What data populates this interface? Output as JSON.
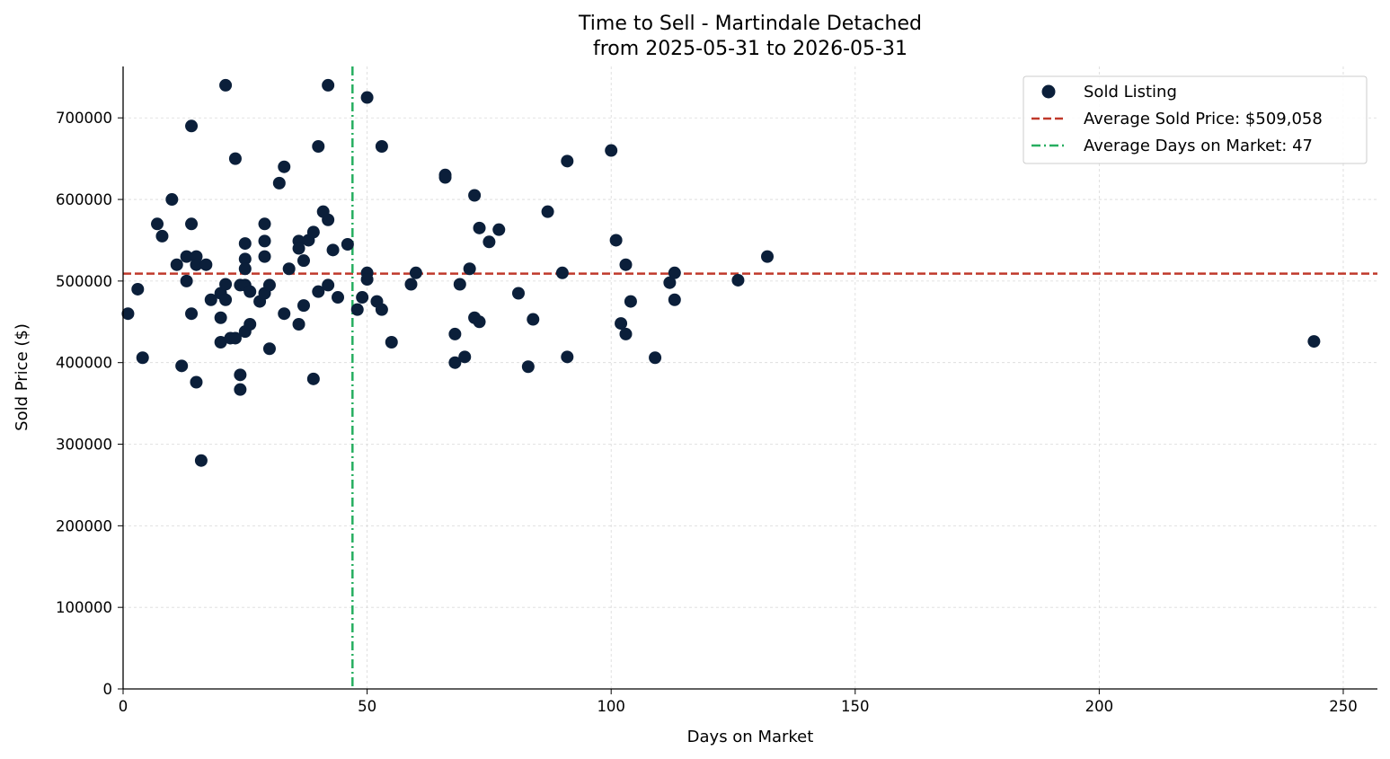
{
  "chart_data": {
    "type": "scatter",
    "title": "Time to Sell - Martindale Detached",
    "subtitle": "from 2025-05-31 to 2026-05-31",
    "xlabel": "Days on Market",
    "ylabel": "Sold Price ($)",
    "xlim": [
      0,
      257
    ],
    "ylim": [
      0,
      763000
    ],
    "xticks": [
      0,
      50,
      100,
      150,
      200,
      250
    ],
    "yticks": [
      0,
      100000,
      200000,
      300000,
      400000,
      500000,
      600000,
      700000
    ],
    "grid": true,
    "legend_position": "top-right",
    "colors": {
      "points": "#0b1f3a",
      "avg_price": "#c0392b",
      "avg_days": "#27ae60"
    },
    "series": [
      {
        "name": "Sold Listing",
        "x": [
          1,
          3,
          4,
          7,
          8,
          10,
          11,
          12,
          13,
          13,
          14,
          14,
          14,
          15,
          15,
          15,
          16,
          17,
          18,
          20,
          20,
          20,
          21,
          21,
          21,
          22,
          23,
          23,
          24,
          24,
          24,
          25,
          25,
          25,
          25,
          25,
          26,
          26,
          28,
          29,
          29,
          29,
          29,
          30,
          30,
          32,
          33,
          33,
          34,
          36,
          36,
          36,
          37,
          37,
          38,
          39,
          39,
          40,
          40,
          41,
          42,
          42,
          42,
          43,
          44,
          46,
          48,
          49,
          50,
          50,
          50,
          52,
          53,
          53,
          55,
          59,
          60,
          66,
          66,
          68,
          68,
          69,
          70,
          71,
          72,
          72,
          73,
          73,
          75,
          77,
          81,
          83,
          84,
          87,
          90,
          91,
          91,
          100,
          101,
          102,
          103,
          103,
          104,
          109,
          112,
          113,
          113,
          126,
          132,
          244
        ],
        "y": [
          460000,
          490000,
          406000,
          570000,
          555000,
          600000,
          520000,
          396000,
          530000,
          500000,
          690000,
          570000,
          460000,
          530000,
          520000,
          376000,
          280000,
          520000,
          477000,
          485000,
          455000,
          425000,
          740000,
          496000,
          477000,
          430000,
          650000,
          430000,
          495000,
          385000,
          367000,
          546000,
          527000,
          515000,
          495000,
          438000,
          487000,
          447000,
          475000,
          570000,
          549000,
          530000,
          485000,
          495000,
          417000,
          620000,
          640000,
          460000,
          515000,
          549000,
          540000,
          447000,
          525000,
          470000,
          550000,
          560000,
          380000,
          665000,
          487000,
          585000,
          575000,
          740000,
          495000,
          538000,
          480000,
          545000,
          465000,
          480000,
          725000,
          510000,
          502000,
          475000,
          665000,
          465000,
          425000,
          496000,
          510000,
          630000,
          627000,
          400000,
          435000,
          496000,
          407000,
          515000,
          605000,
          455000,
          565000,
          450000,
          548000,
          563000,
          485000,
          395000,
          453000,
          585000,
          510000,
          647000,
          407000,
          660000,
          550000,
          448000,
          435000,
          520000,
          475000,
          406000,
          498000,
          510000,
          477000,
          501000,
          530000,
          426000
        ]
      }
    ],
    "reference_lines": [
      {
        "label": "Average Sold Price: $509,058",
        "axis": "y",
        "value": 509058,
        "style": "dashed"
      },
      {
        "label": "Average Days on Market: 47",
        "axis": "x",
        "value": 47,
        "style": "dashdot"
      }
    ]
  }
}
